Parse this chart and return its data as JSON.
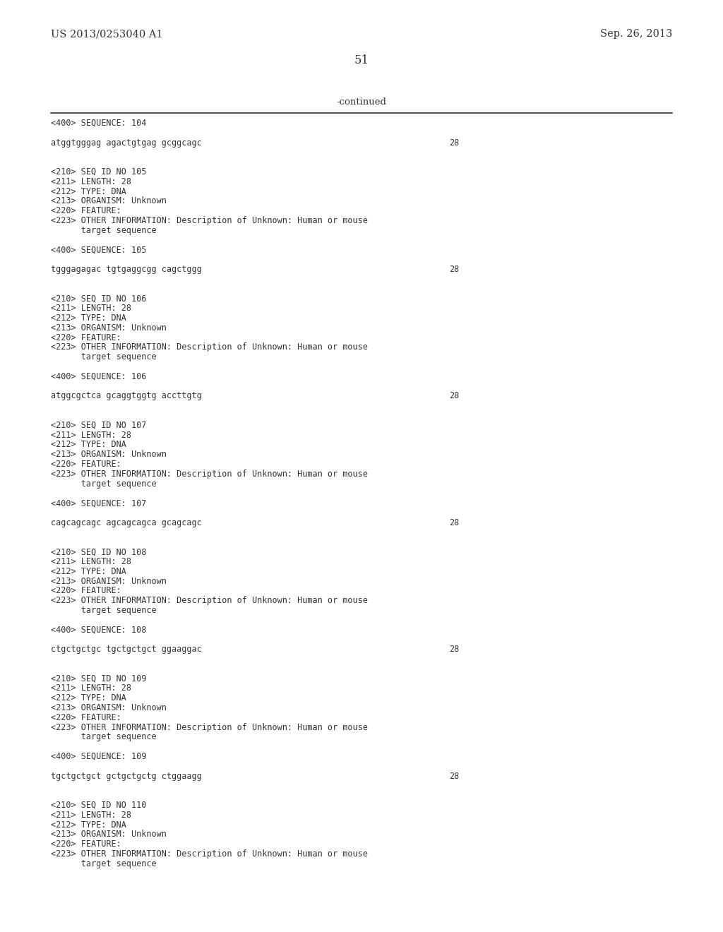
{
  "background_color": "#ffffff",
  "header_left": "US 2013/0253040 A1",
  "header_right": "Sep. 26, 2013",
  "page_number": "51",
  "continued_label": "-continued",
  "text_color": "#333333",
  "line_color": "#333333",
  "header_font_size": 10.5,
  "page_num_font_size": 12,
  "continued_font_size": 9.5,
  "mono_font_size": 8.5,
  "content_blocks": [
    {
      "lines": [
        {
          "text": "<400> SEQUENCE: 104",
          "indent": 0,
          "type": "meta"
        },
        {
          "text": "",
          "indent": 0,
          "type": "spacer"
        },
        {
          "text": "atggtgggag agactgtgag gcggcagc",
          "indent": 0,
          "type": "seq",
          "num": "28"
        },
        {
          "text": "",
          "indent": 0,
          "type": "spacer"
        },
        {
          "text": "",
          "indent": 0,
          "type": "spacer"
        },
        {
          "text": "<210> SEQ ID NO 105",
          "indent": 0,
          "type": "meta"
        },
        {
          "text": "<211> LENGTH: 28",
          "indent": 0,
          "type": "meta"
        },
        {
          "text": "<212> TYPE: DNA",
          "indent": 0,
          "type": "meta"
        },
        {
          "text": "<213> ORGANISM: Unknown",
          "indent": 0,
          "type": "meta"
        },
        {
          "text": "<220> FEATURE:",
          "indent": 0,
          "type": "meta"
        },
        {
          "text": "<223> OTHER INFORMATION: Description of Unknown: Human or mouse",
          "indent": 0,
          "type": "meta"
        },
        {
          "text": "      target sequence",
          "indent": 0,
          "type": "meta"
        },
        {
          "text": "",
          "indent": 0,
          "type": "spacer"
        },
        {
          "text": "<400> SEQUENCE: 105",
          "indent": 0,
          "type": "meta"
        },
        {
          "text": "",
          "indent": 0,
          "type": "spacer"
        },
        {
          "text": "tgggagagac tgtgaggcgg cagctggg",
          "indent": 0,
          "type": "seq",
          "num": "28"
        },
        {
          "text": "",
          "indent": 0,
          "type": "spacer"
        },
        {
          "text": "",
          "indent": 0,
          "type": "spacer"
        },
        {
          "text": "<210> SEQ ID NO 106",
          "indent": 0,
          "type": "meta"
        },
        {
          "text": "<211> LENGTH: 28",
          "indent": 0,
          "type": "meta"
        },
        {
          "text": "<212> TYPE: DNA",
          "indent": 0,
          "type": "meta"
        },
        {
          "text": "<213> ORGANISM: Unknown",
          "indent": 0,
          "type": "meta"
        },
        {
          "text": "<220> FEATURE:",
          "indent": 0,
          "type": "meta"
        },
        {
          "text": "<223> OTHER INFORMATION: Description of Unknown: Human or mouse",
          "indent": 0,
          "type": "meta"
        },
        {
          "text": "      target sequence",
          "indent": 0,
          "type": "meta"
        },
        {
          "text": "",
          "indent": 0,
          "type": "spacer"
        },
        {
          "text": "<400> SEQUENCE: 106",
          "indent": 0,
          "type": "meta"
        },
        {
          "text": "",
          "indent": 0,
          "type": "spacer"
        },
        {
          "text": "atggcgctca gcaggtggtg accttgtg",
          "indent": 0,
          "type": "seq",
          "num": "28"
        },
        {
          "text": "",
          "indent": 0,
          "type": "spacer"
        },
        {
          "text": "",
          "indent": 0,
          "type": "spacer"
        },
        {
          "text": "<210> SEQ ID NO 107",
          "indent": 0,
          "type": "meta"
        },
        {
          "text": "<211> LENGTH: 28",
          "indent": 0,
          "type": "meta"
        },
        {
          "text": "<212> TYPE: DNA",
          "indent": 0,
          "type": "meta"
        },
        {
          "text": "<213> ORGANISM: Unknown",
          "indent": 0,
          "type": "meta"
        },
        {
          "text": "<220> FEATURE:",
          "indent": 0,
          "type": "meta"
        },
        {
          "text": "<223> OTHER INFORMATION: Description of Unknown: Human or mouse",
          "indent": 0,
          "type": "meta"
        },
        {
          "text": "      target sequence",
          "indent": 0,
          "type": "meta"
        },
        {
          "text": "",
          "indent": 0,
          "type": "spacer"
        },
        {
          "text": "<400> SEQUENCE: 107",
          "indent": 0,
          "type": "meta"
        },
        {
          "text": "",
          "indent": 0,
          "type": "spacer"
        },
        {
          "text": "cagcagcagc agcagcagca gcagcagc",
          "indent": 0,
          "type": "seq",
          "num": "28"
        },
        {
          "text": "",
          "indent": 0,
          "type": "spacer"
        },
        {
          "text": "",
          "indent": 0,
          "type": "spacer"
        },
        {
          "text": "<210> SEQ ID NO 108",
          "indent": 0,
          "type": "meta"
        },
        {
          "text": "<211> LENGTH: 28",
          "indent": 0,
          "type": "meta"
        },
        {
          "text": "<212> TYPE: DNA",
          "indent": 0,
          "type": "meta"
        },
        {
          "text": "<213> ORGANISM: Unknown",
          "indent": 0,
          "type": "meta"
        },
        {
          "text": "<220> FEATURE:",
          "indent": 0,
          "type": "meta"
        },
        {
          "text": "<223> OTHER INFORMATION: Description of Unknown: Human or mouse",
          "indent": 0,
          "type": "meta"
        },
        {
          "text": "      target sequence",
          "indent": 0,
          "type": "meta"
        },
        {
          "text": "",
          "indent": 0,
          "type": "spacer"
        },
        {
          "text": "<400> SEQUENCE: 108",
          "indent": 0,
          "type": "meta"
        },
        {
          "text": "",
          "indent": 0,
          "type": "spacer"
        },
        {
          "text": "ctgctgctgc tgctgctgct ggaaggac",
          "indent": 0,
          "type": "seq",
          "num": "28"
        },
        {
          "text": "",
          "indent": 0,
          "type": "spacer"
        },
        {
          "text": "",
          "indent": 0,
          "type": "spacer"
        },
        {
          "text": "<210> SEQ ID NO 109",
          "indent": 0,
          "type": "meta"
        },
        {
          "text": "<211> LENGTH: 28",
          "indent": 0,
          "type": "meta"
        },
        {
          "text": "<212> TYPE: DNA",
          "indent": 0,
          "type": "meta"
        },
        {
          "text": "<213> ORGANISM: Unknown",
          "indent": 0,
          "type": "meta"
        },
        {
          "text": "<220> FEATURE:",
          "indent": 0,
          "type": "meta"
        },
        {
          "text": "<223> OTHER INFORMATION: Description of Unknown: Human or mouse",
          "indent": 0,
          "type": "meta"
        },
        {
          "text": "      target sequence",
          "indent": 0,
          "type": "meta"
        },
        {
          "text": "",
          "indent": 0,
          "type": "spacer"
        },
        {
          "text": "<400> SEQUENCE: 109",
          "indent": 0,
          "type": "meta"
        },
        {
          "text": "",
          "indent": 0,
          "type": "spacer"
        },
        {
          "text": "tgctgctgct gctgctgctg ctggaagg",
          "indent": 0,
          "type": "seq",
          "num": "28"
        },
        {
          "text": "",
          "indent": 0,
          "type": "spacer"
        },
        {
          "text": "",
          "indent": 0,
          "type": "spacer"
        },
        {
          "text": "<210> SEQ ID NO 110",
          "indent": 0,
          "type": "meta"
        },
        {
          "text": "<211> LENGTH: 28",
          "indent": 0,
          "type": "meta"
        },
        {
          "text": "<212> TYPE: DNA",
          "indent": 0,
          "type": "meta"
        },
        {
          "text": "<213> ORGANISM: Unknown",
          "indent": 0,
          "type": "meta"
        },
        {
          "text": "<220> FEATURE:",
          "indent": 0,
          "type": "meta"
        },
        {
          "text": "<223> OTHER INFORMATION: Description of Unknown: Human or mouse",
          "indent": 0,
          "type": "meta"
        },
        {
          "text": "      target sequence",
          "indent": 0,
          "type": "meta"
        }
      ]
    }
  ]
}
